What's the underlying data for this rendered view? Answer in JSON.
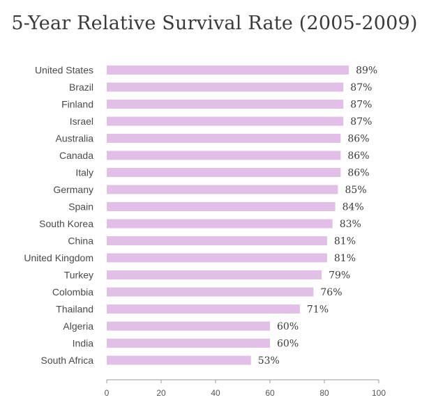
{
  "chart_data": {
    "type": "bar",
    "orientation": "horizontal",
    "title": "5-Year Relative Survival Rate (2005-2009)",
    "xlabel": "",
    "ylabel": "",
    "xlim": [
      0,
      100
    ],
    "x_ticks": [
      0,
      20,
      40,
      60,
      80,
      100
    ],
    "value_suffix": "%",
    "grid": false,
    "bar_color": "#e2bfe6",
    "categories": [
      "United States",
      "Brazil",
      "Finland",
      "Israel",
      "Australia",
      "Canada",
      "Italy",
      "Germany",
      "Spain",
      "South Korea",
      "China",
      "United Kingdom",
      "Turkey",
      "Colombia",
      "Thailand",
      "Algeria",
      "India",
      "South Africa"
    ],
    "values": [
      89,
      87,
      87,
      87,
      86,
      86,
      86,
      85,
      84,
      83,
      81,
      81,
      79,
      76,
      71,
      60,
      60,
      53
    ],
    "value_labels": [
      "89%",
      "87%",
      "87%",
      "87%",
      "86%",
      "86%",
      "86%",
      "85%",
      "84%",
      "83%",
      "81%",
      "81%",
      "79%",
      "76%",
      "71%",
      "60%",
      "60%",
      "53%"
    ]
  }
}
